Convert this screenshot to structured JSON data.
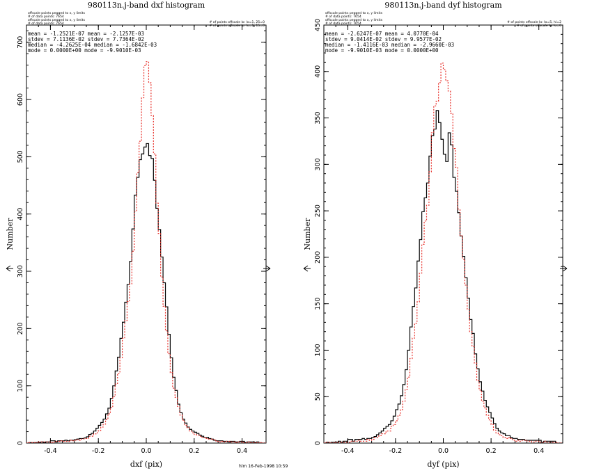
{
  "chart_data": [
    {
      "type": "histogram",
      "title": "980113n.j-band dxf histogram",
      "xlabel": "dxf (pix)",
      "ylabel": "Number",
      "xlim": [
        -0.5,
        0.5
      ],
      "ylim": [
        0,
        730
      ],
      "xticks": [
        "-0.4",
        "-0.2",
        "0.0",
        "0.2",
        "0.4"
      ],
      "yticks": [
        "0",
        "100",
        "200",
        "300",
        "400",
        "500",
        "600",
        "700"
      ],
      "header_left": [
        "offscale points pegged to x, y limits",
        "# of data points: 7654",
        "offscale points pegged to x, y limits",
        "# of data points: 7654"
      ],
      "header_right": [
        "# of points offscale lo: lo=1, 25=0",
        "# of points offscale lo: lo=1, 15=0"
      ],
      "stats": [
        "mean = -1.2521E-07   mean = -2.1257E-03",
        "stdev =  7.1136E-02   stdev =  7.7364E-02",
        "median = -4.2625E-04 median = -1.6842E-03",
        "mode =  0.0000E+00   mode = -9.9010E-03"
      ],
      "series": [
        {
          "color": "#000000",
          "style": "solid",
          "x": [
            -0.5,
            -0.3,
            -0.25,
            -0.22,
            -0.2,
            -0.18,
            -0.16,
            -0.14,
            -0.12,
            -0.1,
            -0.08,
            -0.06,
            -0.05,
            -0.04,
            -0.03,
            -0.02,
            -0.01,
            0.0,
            0.01,
            0.02,
            0.03,
            0.04,
            0.05,
            0.06,
            0.08,
            0.1,
            0.12,
            0.14,
            0.16,
            0.18,
            0.2,
            0.25,
            0.3,
            0.5
          ],
          "y": [
            0,
            5,
            10,
            20,
            28,
            38,
            55,
            85,
            135,
            195,
            255,
            345,
            395,
            455,
            485,
            505,
            528,
            530,
            528,
            500,
            475,
            440,
            385,
            345,
            265,
            170,
            100,
            60,
            38,
            26,
            20,
            10,
            4,
            0
          ]
        },
        {
          "color": "#e8302a",
          "style": "dashed",
          "x": [
            -0.5,
            -0.3,
            -0.25,
            -0.22,
            -0.2,
            -0.18,
            -0.16,
            -0.14,
            -0.12,
            -0.1,
            -0.08,
            -0.06,
            -0.05,
            -0.04,
            -0.03,
            -0.02,
            -0.01,
            0.0,
            0.01,
            0.02,
            0.03,
            0.04,
            0.05,
            0.06,
            0.08,
            0.1,
            0.12,
            0.14,
            0.16,
            0.18,
            0.2,
            0.25,
            0.3,
            0.5
          ],
          "y": [
            0,
            4,
            8,
            14,
            20,
            30,
            45,
            70,
            110,
            165,
            225,
            305,
            365,
            430,
            500,
            580,
            630,
            650,
            650,
            610,
            545,
            465,
            395,
            320,
            215,
            135,
            85,
            55,
            35,
            23,
            16,
            9,
            3,
            0
          ]
        }
      ]
    },
    {
      "type": "histogram",
      "title": "980113n.j-band dyf histogram",
      "xlabel": "dyf (pix)",
      "ylabel": "Number",
      "xlim": [
        -0.5,
        0.5
      ],
      "ylim": [
        0,
        450
      ],
      "xticks": [
        "-0.4",
        "-0.2",
        "0.0",
        "0.2",
        "0.4"
      ],
      "yticks": [
        "0",
        "50",
        "100",
        "150",
        "200",
        "250",
        "300",
        "350",
        "400",
        "450"
      ],
      "header_left": [
        "offscale points pegged to x, y limits",
        "# of data points: 7654",
        "offscale points pegged to x, y limits",
        "# of data points: 7654"
      ],
      "header_right": [
        "# of points offscale lo: lo=5, hi=2",
        "# of points offscale lo: lo=6"
      ],
      "stats": [
        "mean = -2.6247E-07   mean =  4.0770E-04",
        "stdev =  9.0414E-02   stdev =  9.9577E-02",
        "median = -1.4116E-03 median = -2.9660E-03",
        "mode = -9.9010E-03   mode =  0.0000E+00"
      ],
      "series": [
        {
          "color": "#000000",
          "style": "solid",
          "x": [
            -0.5,
            -0.3,
            -0.28,
            -0.25,
            -0.22,
            -0.2,
            -0.18,
            -0.16,
            -0.14,
            -0.12,
            -0.1,
            -0.08,
            -0.06,
            -0.05,
            -0.04,
            -0.03,
            -0.02,
            -0.01,
            0.0,
            0.01,
            0.02,
            0.03,
            0.04,
            0.05,
            0.06,
            0.08,
            0.1,
            0.12,
            0.14,
            0.16,
            0.18,
            0.2,
            0.22,
            0.25,
            0.3,
            0.5
          ],
          "y": [
            0,
            5,
            8,
            15,
            22,
            32,
            45,
            70,
            110,
            155,
            205,
            255,
            295,
            315,
            335,
            350,
            365,
            340,
            330,
            300,
            320,
            335,
            305,
            270,
            260,
            215,
            170,
            125,
            90,
            60,
            42,
            30,
            18,
            10,
            5,
            0
          ]
        },
        {
          "color": "#e8302a",
          "style": "dashed",
          "x": [
            -0.5,
            -0.3,
            -0.28,
            -0.25,
            -0.22,
            -0.2,
            -0.18,
            -0.16,
            -0.14,
            -0.12,
            -0.1,
            -0.08,
            -0.06,
            -0.05,
            -0.04,
            -0.03,
            -0.02,
            -0.01,
            0.0,
            0.01,
            0.02,
            0.03,
            0.04,
            0.05,
            0.06,
            0.08,
            0.1,
            0.12,
            0.14,
            0.16,
            0.18,
            0.2,
            0.22,
            0.25,
            0.3,
            0.5
          ],
          "y": [
            0,
            3,
            6,
            10,
            15,
            22,
            32,
            50,
            80,
            120,
            165,
            225,
            275,
            310,
            345,
            370,
            385,
            395,
            400,
            385,
            395,
            370,
            340,
            310,
            270,
            210,
            155,
            110,
            75,
            50,
            33,
            22,
            12,
            7,
            3,
            0
          ]
        }
      ]
    }
  ],
  "footer": "hlm 16-Feb-1998 10:59"
}
